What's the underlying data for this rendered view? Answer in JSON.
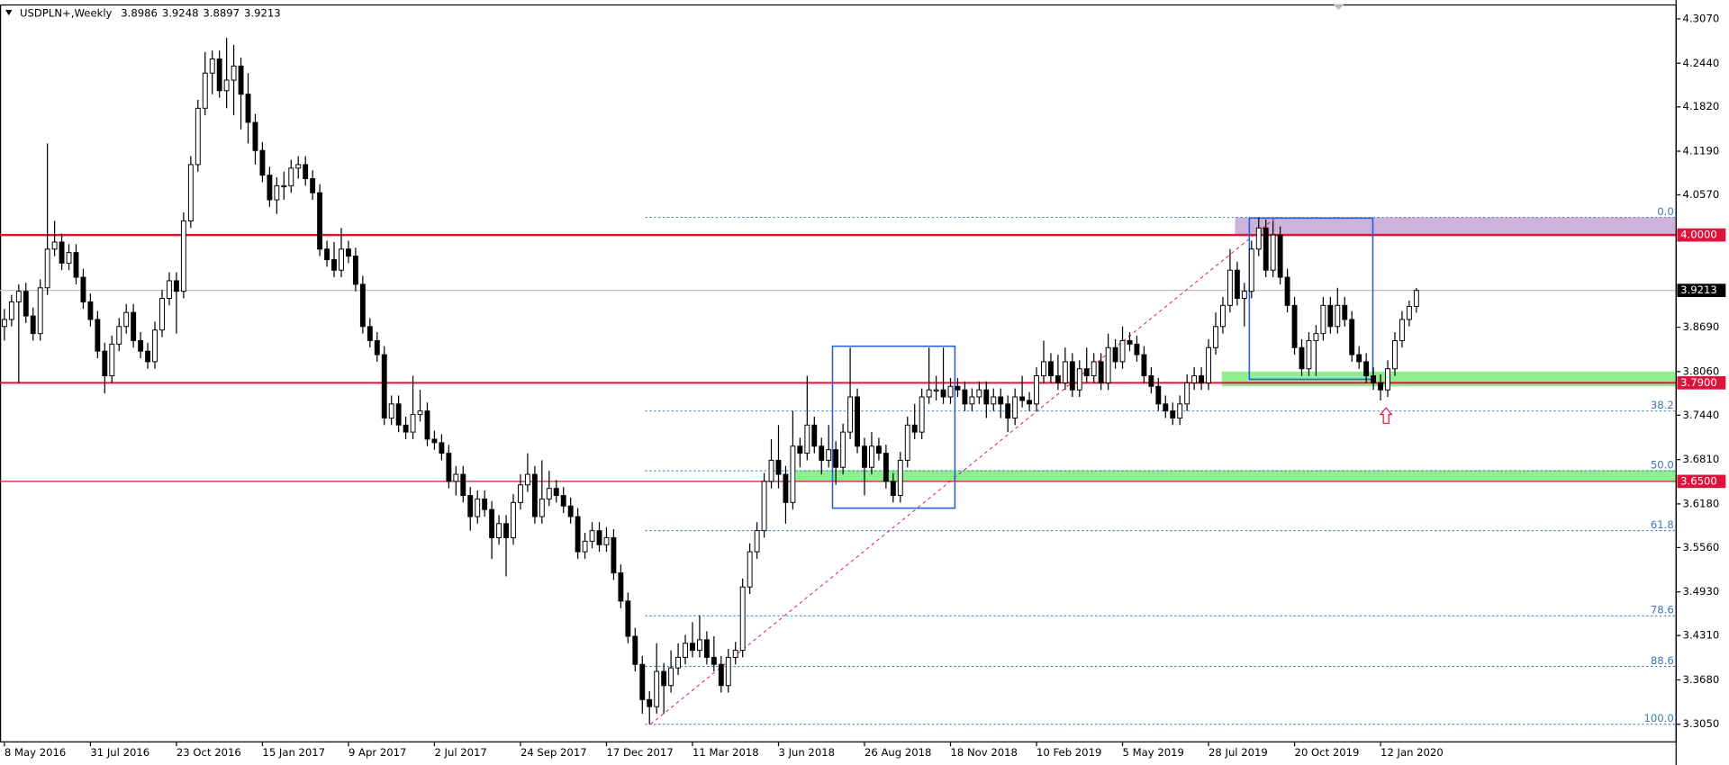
{
  "chart_data": {
    "type": "candlestick",
    "title": "USDPLN+,Weekly",
    "categories": [
      "8 May 2016",
      null,
      null,
      null,
      null,
      null,
      null,
      null,
      null,
      null,
      null,
      null,
      "31 Jul 2016",
      null,
      null,
      null,
      null,
      null,
      null,
      null,
      null,
      null,
      null,
      null,
      "23 Oct 2016",
      null,
      null,
      null,
      null,
      null,
      null,
      null,
      null,
      null,
      null,
      null,
      "15 Jan 2017",
      null,
      null,
      null,
      null,
      null,
      null,
      null,
      null,
      null,
      null,
      null,
      "9 Apr 2017",
      null,
      null,
      null,
      null,
      null,
      null,
      null,
      null,
      null,
      null,
      null,
      "2 Jul 2017",
      null,
      null,
      null,
      null,
      null,
      null,
      null,
      null,
      null,
      null,
      null,
      "24 Sep 2017",
      null,
      null,
      null,
      null,
      null,
      null,
      null,
      null,
      null,
      null,
      null,
      "17 Dec 2017",
      null,
      null,
      null,
      null,
      null,
      null,
      null,
      null,
      null,
      null,
      null,
      "11 Mar 2018",
      null,
      null,
      null,
      null,
      null,
      null,
      null,
      null,
      null,
      null,
      null,
      "3 Jun 2018",
      null,
      null,
      null,
      null,
      null,
      null,
      null,
      null,
      null,
      null,
      null,
      "26 Aug 2018",
      null,
      null,
      null,
      null,
      null,
      null,
      null,
      null,
      null,
      null,
      null,
      "18 Nov 2018",
      null,
      null,
      null,
      null,
      null,
      null,
      null,
      null,
      null,
      null,
      null,
      "10 Feb 2019",
      null,
      null,
      null,
      null,
      null,
      null,
      null,
      null,
      null,
      null,
      null,
      "5 May 2019",
      null,
      null,
      null,
      null,
      null,
      null,
      null,
      null,
      null,
      null,
      null,
      "28 Jul 2019",
      null,
      null,
      null,
      null,
      null,
      null,
      null,
      null,
      null,
      null,
      null,
      "20 Oct 2019",
      null,
      null,
      null,
      null,
      null,
      null,
      null,
      null,
      null,
      null,
      null,
      "12 Jan 2020",
      null,
      null,
      null,
      null,
      null
    ],
    "candles": [
      [
        3.87,
        3.895,
        3.85,
        3.88
      ],
      [
        3.88,
        3.915,
        3.87,
        3.905
      ],
      [
        3.905,
        3.93,
        3.79,
        3.92
      ],
      [
        3.92,
        3.932,
        3.875,
        3.885
      ],
      [
        3.885,
        3.897,
        3.85,
        3.86
      ],
      [
        3.86,
        3.937,
        3.85,
        3.925
      ],
      [
        3.925,
        4.13,
        3.915,
        3.98
      ],
      [
        3.98,
        4.02,
        3.97,
        3.99
      ],
      [
        3.99,
        4.002,
        3.95,
        3.96
      ],
      [
        3.96,
        3.987,
        3.95,
        3.975
      ],
      [
        3.975,
        3.987,
        3.93,
        3.94
      ],
      [
        3.94,
        3.952,
        3.895,
        3.905
      ],
      [
        3.905,
        3.917,
        3.87,
        3.88
      ],
      [
        3.88,
        3.892,
        3.825,
        3.835
      ],
      [
        3.835,
        3.847,
        3.775,
        3.8
      ],
      [
        3.8,
        3.857,
        3.79,
        3.845
      ],
      [
        3.845,
        3.882,
        3.835,
        3.87
      ],
      [
        3.87,
        3.902,
        3.86,
        3.89
      ],
      [
        3.89,
        3.902,
        3.84,
        3.85
      ],
      [
        3.85,
        3.862,
        3.825,
        3.835
      ],
      [
        3.835,
        3.847,
        3.81,
        3.82
      ],
      [
        3.82,
        3.877,
        3.81,
        3.865
      ],
      [
        3.865,
        3.922,
        3.855,
        3.91
      ],
      [
        3.91,
        3.947,
        3.9,
        3.935
      ],
      [
        3.935,
        3.947,
        3.86,
        3.92
      ],
      [
        3.92,
        4.032,
        3.91,
        4.02
      ],
      [
        4.02,
        4.112,
        4.01,
        4.1
      ],
      [
        4.1,
        4.192,
        4.09,
        4.18
      ],
      [
        4.18,
        4.26,
        4.17,
        4.23
      ],
      [
        4.23,
        4.262,
        4.2,
        4.25
      ],
      [
        4.25,
        4.262,
        4.195,
        4.205
      ],
      [
        4.205,
        4.28,
        4.18,
        4.22
      ],
      [
        4.22,
        4.27,
        4.17,
        4.24
      ],
      [
        4.24,
        4.252,
        4.15,
        4.2
      ],
      [
        4.2,
        4.23,
        4.13,
        4.16
      ],
      [
        4.16,
        4.172,
        4.1,
        4.12
      ],
      [
        4.12,
        4.132,
        4.075,
        4.085
      ],
      [
        4.085,
        4.097,
        4.04,
        4.05
      ],
      [
        4.05,
        4.082,
        4.03,
        4.07
      ],
      [
        4.07,
        4.09,
        4.05,
        4.07
      ],
      [
        4.07,
        4.107,
        4.06,
        4.095
      ],
      [
        4.095,
        4.112,
        4.08,
        4.1
      ],
      [
        4.1,
        4.112,
        4.07,
        4.08
      ],
      [
        4.08,
        4.092,
        4.05,
        4.06
      ],
      [
        4.06,
        4.072,
        3.97,
        3.98
      ],
      [
        3.98,
        3.992,
        3.955,
        3.965
      ],
      [
        3.965,
        3.99,
        3.94,
        3.95
      ],
      [
        3.95,
        4.01,
        3.94,
        3.98
      ],
      [
        3.98,
        3.992,
        3.96,
        3.97
      ],
      [
        3.97,
        3.982,
        3.92,
        3.93
      ],
      [
        3.93,
        3.942,
        3.86,
        3.87
      ],
      [
        3.87,
        3.882,
        3.84,
        3.85
      ],
      [
        3.85,
        3.862,
        3.82,
        3.83
      ],
      [
        3.83,
        3.842,
        3.73,
        3.74
      ],
      [
        3.74,
        3.772,
        3.73,
        3.76
      ],
      [
        3.76,
        3.772,
        3.72,
        3.73
      ],
      [
        3.73,
        3.742,
        3.71,
        3.72
      ],
      [
        3.72,
        3.8,
        3.71,
        3.745
      ],
      [
        3.745,
        3.78,
        3.735,
        3.75
      ],
      [
        3.75,
        3.762,
        3.7,
        3.71
      ],
      [
        3.71,
        3.722,
        3.695,
        3.705
      ],
      [
        3.705,
        3.717,
        3.68,
        3.69
      ],
      [
        3.69,
        3.702,
        3.64,
        3.65
      ],
      [
        3.65,
        3.672,
        3.63,
        3.66
      ],
      [
        3.66,
        3.672,
        3.62,
        3.63
      ],
      [
        3.63,
        3.642,
        3.58,
        3.6
      ],
      [
        3.6,
        3.637,
        3.59,
        3.625
      ],
      [
        3.625,
        3.637,
        3.6,
        3.61
      ],
      [
        3.61,
        3.622,
        3.54,
        3.57
      ],
      [
        3.57,
        3.602,
        3.56,
        3.59
      ],
      [
        3.59,
        3.602,
        3.515,
        3.57
      ],
      [
        3.57,
        3.632,
        3.56,
        3.62
      ],
      [
        3.62,
        3.66,
        3.61,
        3.645
      ],
      [
        3.645,
        3.69,
        3.635,
        3.66
      ],
      [
        3.66,
        3.672,
        3.59,
        3.6
      ],
      [
        3.6,
        3.68,
        3.59,
        3.625
      ],
      [
        3.625,
        3.665,
        3.615,
        3.64
      ],
      [
        3.64,
        3.652,
        3.62,
        3.63
      ],
      [
        3.63,
        3.642,
        3.605,
        3.615
      ],
      [
        3.615,
        3.627,
        3.59,
        3.6
      ],
      [
        3.6,
        3.612,
        3.54,
        3.55
      ],
      [
        3.55,
        3.577,
        3.54,
        3.565
      ],
      [
        3.565,
        3.592,
        3.555,
        3.58
      ],
      [
        3.58,
        3.592,
        3.55,
        3.56
      ],
      [
        3.56,
        3.585,
        3.55,
        3.57
      ],
      [
        3.57,
        3.582,
        3.51,
        3.52
      ],
      [
        3.52,
        3.532,
        3.47,
        3.48
      ],
      [
        3.48,
        3.492,
        3.42,
        3.43
      ],
      [
        3.43,
        3.442,
        3.38,
        3.39
      ],
      [
        3.39,
        3.402,
        3.32,
        3.34
      ],
      [
        3.34,
        3.352,
        3.305,
        3.33
      ],
      [
        3.33,
        3.42,
        3.32,
        3.38
      ],
      [
        3.38,
        3.392,
        3.32,
        3.36
      ],
      [
        3.36,
        3.41,
        3.35,
        3.385
      ],
      [
        3.385,
        3.42,
        3.375,
        3.4
      ],
      [
        3.4,
        3.432,
        3.39,
        3.42
      ],
      [
        3.42,
        3.45,
        3.4,
        3.41
      ],
      [
        3.41,
        3.46,
        3.4,
        3.425
      ],
      [
        3.425,
        3.437,
        3.39,
        3.4
      ],
      [
        3.4,
        3.43,
        3.38,
        3.39
      ],
      [
        3.39,
        3.402,
        3.35,
        3.36
      ],
      [
        3.36,
        3.412,
        3.35,
        3.4
      ],
      [
        3.4,
        3.422,
        3.39,
        3.41
      ],
      [
        3.41,
        3.512,
        3.4,
        3.5
      ],
      [
        3.5,
        3.562,
        3.49,
        3.55
      ],
      [
        3.55,
        3.592,
        3.54,
        3.58
      ],
      [
        3.58,
        3.662,
        3.57,
        3.65
      ],
      [
        3.65,
        3.71,
        3.64,
        3.68
      ],
      [
        3.68,
        3.73,
        3.64,
        3.66
      ],
      [
        3.66,
        3.672,
        3.59,
        3.62
      ],
      [
        3.62,
        3.75,
        3.61,
        3.7
      ],
      [
        3.7,
        3.712,
        3.67,
        3.69
      ],
      [
        3.69,
        3.8,
        3.68,
        3.73
      ],
      [
        3.73,
        3.742,
        3.69,
        3.7
      ],
      [
        3.7,
        3.712,
        3.66,
        3.68
      ],
      [
        3.68,
        3.73,
        3.67,
        3.695
      ],
      [
        3.695,
        3.707,
        3.645,
        3.67
      ],
      [
        3.67,
        3.732,
        3.66,
        3.72
      ],
      [
        3.72,
        3.84,
        3.71,
        3.77
      ],
      [
        3.77,
        3.782,
        3.69,
        3.7
      ],
      [
        3.7,
        3.712,
        3.63,
        3.67
      ],
      [
        3.67,
        3.72,
        3.66,
        3.7
      ],
      [
        3.7,
        3.712,
        3.68,
        3.69
      ],
      [
        3.69,
        3.702,
        3.64,
        3.65
      ],
      [
        3.65,
        3.662,
        3.62,
        3.63
      ],
      [
        3.63,
        3.692,
        3.62,
        3.68
      ],
      [
        3.68,
        3.742,
        3.67,
        3.73
      ],
      [
        3.73,
        3.76,
        3.71,
        3.72
      ],
      [
        3.72,
        3.782,
        3.71,
        3.77
      ],
      [
        3.77,
        3.84,
        3.76,
        3.78
      ],
      [
        3.78,
        3.8,
        3.765,
        3.78
      ],
      [
        3.78,
        3.84,
        3.76,
        3.77
      ],
      [
        3.77,
        3.797,
        3.76,
        3.785
      ],
      [
        3.785,
        3.797,
        3.77,
        3.78
      ],
      [
        3.78,
        3.792,
        3.75,
        3.76
      ],
      [
        3.76,
        3.782,
        3.75,
        3.77
      ],
      [
        3.77,
        3.792,
        3.76,
        3.78
      ],
      [
        3.78,
        3.792,
        3.74,
        3.76
      ],
      [
        3.76,
        3.782,
        3.75,
        3.77
      ],
      [
        3.77,
        3.782,
        3.74,
        3.76
      ],
      [
        3.76,
        3.772,
        3.72,
        3.74
      ],
      [
        3.74,
        3.782,
        3.73,
        3.77
      ],
      [
        3.77,
        3.8,
        3.755,
        3.765
      ],
      [
        3.765,
        3.777,
        3.75,
        3.76
      ],
      [
        3.76,
        3.812,
        3.75,
        3.8
      ],
      [
        3.8,
        3.85,
        3.79,
        3.82
      ],
      [
        3.82,
        3.832,
        3.79,
        3.8
      ],
      [
        3.8,
        3.83,
        3.78,
        3.79
      ],
      [
        3.79,
        3.84,
        3.78,
        3.82
      ],
      [
        3.82,
        3.832,
        3.77,
        3.78
      ],
      [
        3.78,
        3.822,
        3.77,
        3.81
      ],
      [
        3.81,
        3.84,
        3.79,
        3.8
      ],
      [
        3.8,
        3.832,
        3.79,
        3.82
      ],
      [
        3.82,
        3.832,
        3.78,
        3.79
      ],
      [
        3.79,
        3.86,
        3.78,
        3.84
      ],
      [
        3.84,
        3.852,
        3.81,
        3.82
      ],
      [
        3.82,
        3.87,
        3.81,
        3.85
      ],
      [
        3.85,
        3.862,
        3.835,
        3.845
      ],
      [
        3.845,
        3.857,
        3.82,
        3.83
      ],
      [
        3.83,
        3.842,
        3.79,
        3.8
      ],
      [
        3.8,
        3.812,
        3.775,
        3.785
      ],
      [
        3.785,
        3.797,
        3.75,
        3.76
      ],
      [
        3.76,
        3.772,
        3.74,
        3.75
      ],
      [
        3.75,
        3.762,
        3.73,
        3.74
      ],
      [
        3.74,
        3.772,
        3.73,
        3.76
      ],
      [
        3.76,
        3.802,
        3.75,
        3.79
      ],
      [
        3.79,
        3.812,
        3.78,
        3.8
      ],
      [
        3.8,
        3.812,
        3.78,
        3.79
      ],
      [
        3.79,
        3.852,
        3.78,
        3.84
      ],
      [
        3.84,
        3.89,
        3.83,
        3.87
      ],
      [
        3.87,
        3.912,
        3.86,
        3.9
      ],
      [
        3.9,
        3.98,
        3.89,
        3.95
      ],
      [
        3.95,
        3.962,
        3.9,
        3.91
      ],
      [
        3.91,
        3.932,
        3.87,
        3.92
      ],
      [
        3.92,
        3.992,
        3.91,
        3.98
      ],
      [
        3.98,
        4.025,
        3.97,
        4.01
      ],
      [
        4.01,
        4.022,
        3.94,
        3.95
      ],
      [
        3.95,
        4.02,
        3.94,
        4.0
      ],
      [
        4.0,
        4.012,
        3.93,
        3.94
      ],
      [
        3.94,
        3.952,
        3.89,
        3.9
      ],
      [
        3.9,
        3.912,
        3.83,
        3.84
      ],
      [
        3.84,
        3.852,
        3.8,
        3.81
      ],
      [
        3.81,
        3.862,
        3.8,
        3.85
      ],
      [
        3.85,
        3.872,
        3.8,
        3.86
      ],
      [
        3.86,
        3.912,
        3.85,
        3.9
      ],
      [
        3.9,
        3.912,
        3.86,
        3.87
      ],
      [
        3.87,
        3.925,
        3.86,
        3.9
      ],
      [
        3.9,
        3.912,
        3.87,
        3.88
      ],
      [
        3.88,
        3.892,
        3.82,
        3.83
      ],
      [
        3.83,
        3.842,
        3.81,
        3.82
      ],
      [
        3.82,
        3.832,
        3.79,
        3.8
      ],
      [
        3.8,
        3.812,
        3.78,
        3.79
      ],
      [
        3.79,
        3.802,
        3.765,
        3.78
      ],
      [
        3.78,
        3.822,
        3.77,
        3.81
      ],
      [
        3.81,
        3.862,
        3.8,
        3.85
      ],
      [
        3.85,
        3.892,
        3.84,
        3.88
      ],
      [
        3.88,
        3.907,
        3.87,
        3.8986
      ],
      [
        3.8986,
        3.9248,
        3.8897,
        3.9213
      ]
    ],
    "up_color": "#ffffff",
    "down_color": "#000000",
    "ylim": [
      3.28,
      4.326
    ],
    "yticks": [
      {
        "value": 4.307,
        "label": "4.3070"
      },
      {
        "value": 4.244,
        "label": "4.2440"
      },
      {
        "value": 4.182,
        "label": "4.1820"
      },
      {
        "value": 4.119,
        "label": "4.1190"
      },
      {
        "value": 4.057,
        "label": "4.0570"
      },
      {
        "value": 3.869,
        "label": "3.8690"
      },
      {
        "value": 3.806,
        "label": "3.8060"
      },
      {
        "value": 3.744,
        "label": "3.7440"
      },
      {
        "value": 3.681,
        "label": "3.6810"
      },
      {
        "value": 3.618,
        "label": "3.6180"
      },
      {
        "value": 3.556,
        "label": "3.5560"
      },
      {
        "value": 3.493,
        "label": "3.4930"
      },
      {
        "value": 3.431,
        "label": "3.4310"
      },
      {
        "value": 3.368,
        "label": "3.3680"
      },
      {
        "value": 3.305,
        "label": "3.3050"
      }
    ],
    "levels": [
      {
        "value": 4,
        "label": "4.0000",
        "color": "#dc143c"
      },
      {
        "value": 3.79,
        "label": "3.7900",
        "color": "#dc143c"
      },
      {
        "value": 3.65,
        "label": "3.6500",
        "color": "#dc143c"
      }
    ],
    "fibonacci": {
      "high": 4.025,
      "low": 3.305,
      "color": "#3c78b4",
      "levels": [
        {
          "value": 0,
          "label": "0.0"
        },
        38.2,
        {
          "value": 50,
          "label": "50.0"
        },
        61.8,
        78.6,
        88.6,
        {
          "value": 100,
          "label": "100.0"
        }
      ]
    },
    "zones": [
      {
        "low": 4.0,
        "high": 4.025,
        "color": "#cfb2d9"
      },
      {
        "low": 3.785,
        "high": 3.806,
        "color": "#90ee90"
      },
      {
        "low": 3.65,
        "high": 3.666,
        "color": "#90ee90"
      }
    ],
    "boxes": [
      {
        "low": 3.612,
        "high": 3.842,
        "color": "#2b5fd9"
      },
      {
        "low": 3.795,
        "high": 4.024,
        "color": "#2b5fd9"
      }
    ]
  }
}
